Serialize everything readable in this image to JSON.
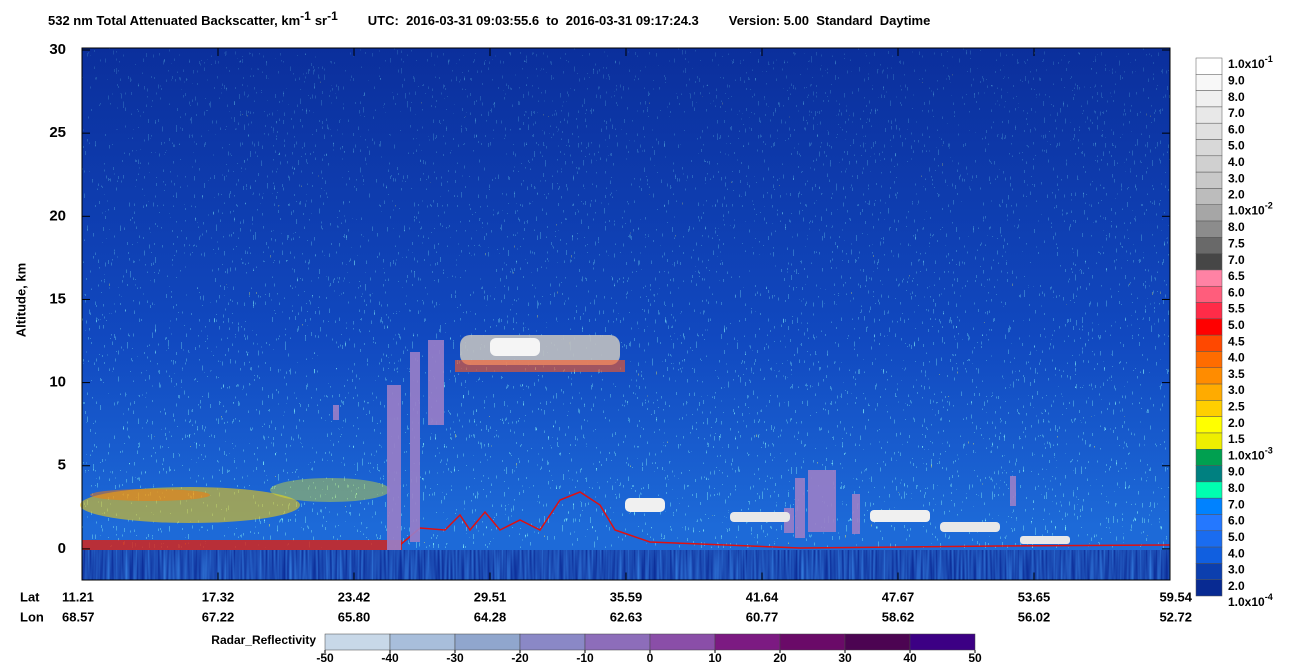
{
  "chart_data": {
    "type": "heatmap",
    "title": {
      "text1": "532 nm Total Attenuated Backscatter, km",
      "sup1": "-1",
      "text2": "sr",
      "sup2": "-1",
      "utc": "UTC:  2016-03-31 09:03:55.6  to  2016-03-31 09:17:24.3",
      "version": "Version: 5.00  Standard  Daytime"
    },
    "ylabel": "Altitude, km",
    "ylim": [
      -1.9,
      30
    ],
    "yticks": [
      0,
      5,
      10,
      15,
      20,
      25,
      30
    ],
    "x_rows": [
      {
        "name": "Lat",
        "labels": [
          "11.21",
          "17.32",
          "23.42",
          "29.51",
          "35.59",
          "41.64",
          "47.67",
          "53.65",
          "59.54"
        ]
      },
      {
        "name": "Lon",
        "labels": [
          "68.57",
          "67.22",
          "65.80",
          "64.28",
          "62.63",
          "60.77",
          "58.62",
          "56.02",
          "52.72"
        ]
      }
    ],
    "colorbar": {
      "levels": [
        {
          "label": "1.0x10",
          "sup": "-1"
        },
        "9.0",
        "8.0",
        "7.0",
        "6.0",
        "5.0",
        "4.0",
        "3.0",
        "2.0",
        {
          "label": "1.0x10",
          "sup": "-2"
        },
        "8.0",
        "7.5",
        "7.0",
        "6.5",
        "6.0",
        "5.5",
        "5.0",
        "4.5",
        "4.0",
        "3.5",
        "3.0",
        "2.5",
        "2.0",
        "1.5",
        {
          "label": "1.0x10",
          "sup": "-3"
        },
        "9.0",
        "8.0",
        "7.0",
        "6.0",
        "5.0",
        "4.0",
        "3.0",
        "2.0",
        {
          "label": "1.0x10",
          "sup": "-4"
        }
      ],
      "colors": [
        "#ffffff",
        "#f8f8f8",
        "#f0f0f0",
        "#e8e8e8",
        "#e0e0e0",
        "#d8d8d8",
        "#d0d0d0",
        "#c8c8c8",
        "#bcbcbc",
        "#a6a6a6",
        "#8c8c8c",
        "#696969",
        "#464646",
        "#ff82a4",
        "#ff5d7c",
        "#ff2b48",
        "#ff0000",
        "#ff4800",
        "#ff6c00",
        "#ff8c00",
        "#ffab00",
        "#ffcf00",
        "#ffff00",
        "#eeee00",
        "#00a050",
        "#008080",
        "#00ffb0",
        "#0082ff",
        "#2478ff",
        "#1a6cf0",
        "#105fe0",
        "#0c3fae",
        "#082a92"
      ]
    },
    "radar": {
      "label": "Radar_Reflectivity",
      "ticks": [
        -50,
        -40,
        -30,
        -20,
        -10,
        0,
        10,
        20,
        30,
        40,
        50
      ],
      "colors": [
        "#c8d8e8",
        "#a8bedb",
        "#90a6cd",
        "#8a88c6",
        "#8d6dba",
        "#8a4ea8",
        "#7c1a82",
        "#6a0a68",
        "#4c0452",
        "#3c0084"
      ]
    }
  }
}
